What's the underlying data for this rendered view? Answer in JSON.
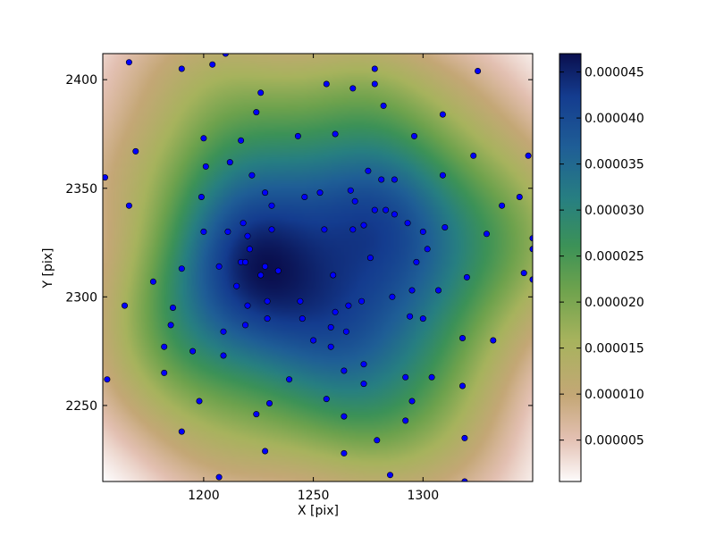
{
  "chart_data": {
    "type": "heatmap",
    "title": "",
    "xlabel": "X [pix]",
    "ylabel": "Y [pix]",
    "xlim": [
      1154,
      1350
    ],
    "ylim": [
      2215,
      2412
    ],
    "xticks": [
      1200,
      1250,
      1300
    ],
    "xtick_labels": [
      "1200",
      "1250",
      "1300"
    ],
    "yticks": [
      2250,
      2300,
      2350,
      2400
    ],
    "ytick_labels": [
      "2250",
      "2300",
      "2350",
      "2400"
    ],
    "colormap": "gist_earth_r",
    "colorbar": {
      "min": 5e-07,
      "max": 4.7e-05,
      "ticks": [
        5e-06,
        1e-05,
        1.5e-05,
        2e-05,
        2.5e-05,
        3e-05,
        3.5e-05,
        4e-05,
        4.5e-05
      ],
      "tick_labels": [
        "0.000005",
        "0.000010",
        "0.000015",
        "0.000020",
        "0.000025",
        "0.000030",
        "0.000035",
        "0.000040",
        "0.000045"
      ]
    },
    "density_peaks": [
      {
        "x": 1232,
        "y": 2310,
        "value": 4.6e-05
      },
      {
        "x": 1277,
        "y": 2330,
        "value": 4.7e-05
      }
    ],
    "point_color": "#0000ff",
    "points": [
      [
        1166,
        2408
      ],
      [
        1190,
        2405
      ],
      [
        1204,
        2407
      ],
      [
        1210,
        2412
      ],
      [
        1278,
        2405
      ],
      [
        1325,
        2404
      ],
      [
        1226,
        2394
      ],
      [
        1256,
        2398
      ],
      [
        1268,
        2396
      ],
      [
        1278,
        2398
      ],
      [
        1282,
        2388
      ],
      [
        1224,
        2385
      ],
      [
        1309,
        2384
      ],
      [
        1200,
        2373
      ],
      [
        1217,
        2372
      ],
      [
        1243,
        2374
      ],
      [
        1260,
        2375
      ],
      [
        1296,
        2374
      ],
      [
        1169,
        2367
      ],
      [
        1212,
        2362
      ],
      [
        1201,
        2360
      ],
      [
        1275,
        2358
      ],
      [
        1323,
        2365
      ],
      [
        1348,
        2365
      ],
      [
        1155,
        2355
      ],
      [
        1222,
        2356
      ],
      [
        1281,
        2354
      ],
      [
        1287,
        2354
      ],
      [
        1309,
        2356
      ],
      [
        1199,
        2346
      ],
      [
        1228,
        2348
      ],
      [
        1246,
        2346
      ],
      [
        1253,
        2348
      ],
      [
        1267,
        2349
      ],
      [
        1344,
        2346
      ],
      [
        1166,
        2342
      ],
      [
        1231,
        2342
      ],
      [
        1269,
        2344
      ],
      [
        1336,
        2342
      ],
      [
        1218,
        2334
      ],
      [
        1278,
        2340
      ],
      [
        1283,
        2340
      ],
      [
        1287,
        2338
      ],
      [
        1293,
        2334
      ],
      [
        1200,
        2330
      ],
      [
        1211,
        2330
      ],
      [
        1231,
        2331
      ],
      [
        1255,
        2331
      ],
      [
        1268,
        2331
      ],
      [
        1273,
        2333
      ],
      [
        1300,
        2330
      ],
      [
        1310,
        2332
      ],
      [
        1329,
        2329
      ],
      [
        1350,
        2327
      ],
      [
        1220,
        2328
      ],
      [
        1221,
        2322
      ],
      [
        1302,
        2322
      ],
      [
        1350,
        2322
      ],
      [
        1217,
        2316
      ],
      [
        1219,
        2316
      ],
      [
        1228,
        2314
      ],
      [
        1276,
        2318
      ],
      [
        1297,
        2316
      ],
      [
        1207,
        2314
      ],
      [
        1234,
        2312
      ],
      [
        1226,
        2310
      ],
      [
        1190,
        2313
      ],
      [
        1177,
        2307
      ],
      [
        1215,
        2305
      ],
      [
        1259,
        2310
      ],
      [
        1320,
        2309
      ],
      [
        1346,
        2311
      ],
      [
        1350,
        2308
      ],
      [
        1295,
        2303
      ],
      [
        1307,
        2303
      ],
      [
        1164,
        2296
      ],
      [
        1186,
        2295
      ],
      [
        1220,
        2296
      ],
      [
        1229,
        2298
      ],
      [
        1244,
        2298
      ],
      [
        1272,
        2298
      ],
      [
        1266,
        2296
      ],
      [
        1286,
        2300
      ],
      [
        1229,
        2290
      ],
      [
        1245,
        2290
      ],
      [
        1260,
        2293
      ],
      [
        1294,
        2291
      ],
      [
        1300,
        2290
      ],
      [
        1185,
        2287
      ],
      [
        1219,
        2287
      ],
      [
        1209,
        2284
      ],
      [
        1258,
        2286
      ],
      [
        1265,
        2284
      ],
      [
        1250,
        2280
      ],
      [
        1258,
        2277
      ],
      [
        1182,
        2277
      ],
      [
        1318,
        2281
      ],
      [
        1332,
        2280
      ],
      [
        1195,
        2275
      ],
      [
        1209,
        2273
      ],
      [
        1273,
        2269
      ],
      [
        1182,
        2265
      ],
      [
        1264,
        2266
      ],
      [
        1239,
        2262
      ],
      [
        1156,
        2262
      ],
      [
        1292,
        2263
      ],
      [
        1304,
        2263
      ],
      [
        1273,
        2260
      ],
      [
        1318,
        2259
      ],
      [
        1198,
        2252
      ],
      [
        1230,
        2251
      ],
      [
        1256,
        2253
      ],
      [
        1295,
        2252
      ],
      [
        1224,
        2246
      ],
      [
        1264,
        2245
      ],
      [
        1292,
        2243
      ],
      [
        1190,
        2238
      ],
      [
        1279,
        2234
      ],
      [
        1319,
        2235
      ],
      [
        1228,
        2229
      ],
      [
        1264,
        2228
      ],
      [
        1207,
        2217
      ],
      [
        1285,
        2218
      ],
      [
        1319,
        2215
      ]
    ]
  }
}
